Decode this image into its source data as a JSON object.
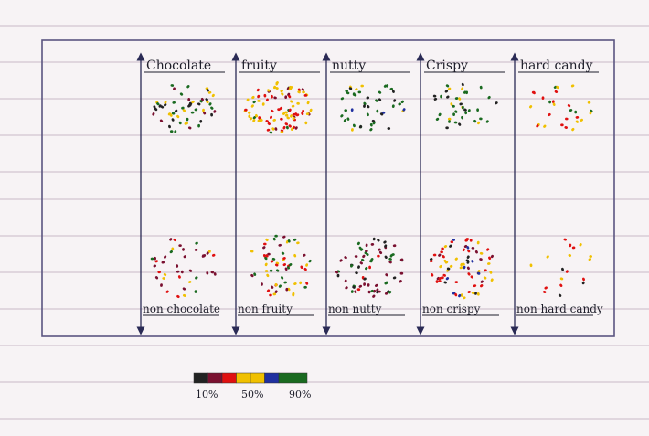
{
  "chart_data": {
    "type": "scatter",
    "categories": [
      "chocolate",
      "fruity",
      "nutty",
      "crispy",
      "hard candy"
    ],
    "top_labels": [
      "Chocolate",
      "fruity",
      "nutty",
      "Crispy",
      "hard candy"
    ],
    "bottom_labels": [
      "non chocolate",
      "non fruity",
      "non nutty",
      "non crispy",
      "non hard candy"
    ],
    "legend": {
      "ticks": [
        "10%",
        "50%",
        "90%"
      ],
      "colors": [
        "#222222",
        "#7a1030",
        "#e01010",
        "#f0c000",
        "#f0c000",
        "#2030a0",
        "#1a6a20",
        "#1a6a20"
      ]
    },
    "dot_colors": {
      "low": "#222222",
      "maroon": "#7a1030",
      "red": "#e01010",
      "yellow": "#f0c000",
      "blue": "#2030a0",
      "green": "#1a6a20"
    },
    "groups": [
      {
        "category": "chocolate",
        "side": "top",
        "count": 55,
        "mix": {
          "green": 0.55,
          "low": 0.2,
          "yellow": 0.15,
          "maroon": 0.1
        }
      },
      {
        "category": "fruity",
        "side": "top",
        "count": 90,
        "mix": {
          "red": 0.45,
          "yellow": 0.4,
          "maroon": 0.1,
          "green": 0.05
        }
      },
      {
        "category": "nutty",
        "side": "top",
        "count": 45,
        "mix": {
          "green": 0.55,
          "low": 0.25,
          "yellow": 0.12,
          "blue": 0.08
        }
      },
      {
        "category": "crispy",
        "side": "top",
        "count": 40,
        "mix": {
          "green": 0.6,
          "low": 0.25,
          "yellow": 0.15
        }
      },
      {
        "category": "hard candy",
        "side": "top",
        "count": 28,
        "mix": {
          "red": 0.4,
          "yellow": 0.35,
          "green": 0.25
        }
      },
      {
        "category": "chocolate",
        "side": "bottom",
        "count": 40,
        "mix": {
          "maroon": 0.5,
          "red": 0.2,
          "green": 0.2,
          "yellow": 0.1
        }
      },
      {
        "category": "fruity",
        "side": "bottom",
        "count": 60,
        "mix": {
          "green": 0.3,
          "maroon": 0.25,
          "red": 0.2,
          "yellow": 0.25
        }
      },
      {
        "category": "nutty",
        "side": "bottom",
        "count": 70,
        "mix": {
          "maroon": 0.4,
          "low": 0.3,
          "green": 0.2,
          "red": 0.1
        }
      },
      {
        "category": "crispy",
        "side": "bottom",
        "count": 75,
        "mix": {
          "red": 0.35,
          "yellow": 0.25,
          "maroon": 0.2,
          "blue": 0.1,
          "low": 0.1
        }
      },
      {
        "category": "hard candy",
        "side": "bottom",
        "count": 18,
        "mix": {
          "red": 0.45,
          "yellow": 0.35,
          "low": 0.2
        }
      }
    ]
  }
}
